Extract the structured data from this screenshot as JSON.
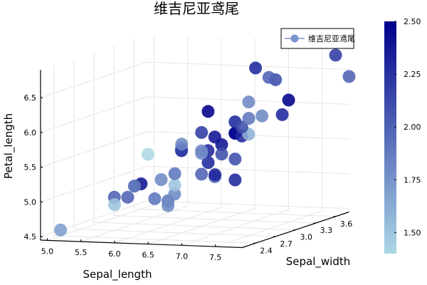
{
  "chart_data": {
    "type": "scatter",
    "title": "维吉尼亚鸢尾",
    "xlabel": "Sepal_length",
    "ylabel": "Sepal_width",
    "zlabel": "Petal_length",
    "xlim": [
      4.9,
      7.9
    ],
    "ylim": [
      2.2,
      3.8
    ],
    "zlim": [
      4.45,
      6.9
    ],
    "xticks": [
      "5.0",
      "5.5",
      "6.0",
      "6.5",
      "7.0",
      "7.5"
    ],
    "yticks": [
      "2.4",
      "2.7",
      "3.0",
      "3.3",
      "3.6"
    ],
    "zticks": [
      "4.5",
      "5.0",
      "5.5",
      "6.0",
      "6.5"
    ],
    "grid": true,
    "legend": {
      "position": "top-right",
      "entries": [
        "维吉尼亚鸢尾"
      ]
    },
    "colorbar": {
      "min": 1.4,
      "max": 2.5,
      "ticks": [
        "1.50",
        "1.75",
        "2.00",
        "2.25",
        "2.50"
      ],
      "low_color": "#add8e6",
      "high_color": "#00008b"
    },
    "series": [
      {
        "name": "维吉尼亚鸢尾",
        "x": [
          6.3,
          5.8,
          7.1,
          6.3,
          6.5,
          7.6,
          4.9,
          7.3,
          6.7,
          7.2,
          6.5,
          6.4,
          6.8,
          5.7,
          5.8,
          6.4,
          6.5,
          7.7,
          7.7,
          6.0,
          6.9,
          5.6,
          7.7,
          6.3,
          6.7,
          7.2,
          6.2,
          6.1,
          6.4,
          7.2,
          7.4,
          7.9,
          6.4,
          6.3,
          6.1,
          7.7,
          6.3,
          6.4,
          6.0,
          6.9,
          6.7,
          6.9,
          5.8,
          6.8,
          6.7,
          6.7,
          6.3,
          6.5,
          6.2,
          5.9
        ],
        "y": [
          3.3,
          2.7,
          3.0,
          2.9,
          3.0,
          3.0,
          2.5,
          2.9,
          2.5,
          3.6,
          3.2,
          2.7,
          3.0,
          2.5,
          2.8,
          3.2,
          3.0,
          3.8,
          2.6,
          2.2,
          3.2,
          2.8,
          2.8,
          2.7,
          3.3,
          3.2,
          2.8,
          3.0,
          2.8,
          3.0,
          2.8,
          3.8,
          2.8,
          2.8,
          2.6,
          3.0,
          3.4,
          3.1,
          3.0,
          3.1,
          3.1,
          3.1,
          2.7,
          3.2,
          3.3,
          3.0,
          2.5,
          3.0,
          3.4,
          3.0
        ],
        "z": [
          6.0,
          5.1,
          5.9,
          5.6,
          5.8,
          6.6,
          4.5,
          6.3,
          5.8,
          6.1,
          5.1,
          5.3,
          5.5,
          5.0,
          5.1,
          5.3,
          5.5,
          6.7,
          6.9,
          5.0,
          5.7,
          4.9,
          6.7,
          4.9,
          5.7,
          6.0,
          4.8,
          4.9,
          5.6,
          5.8,
          6.1,
          6.4,
          5.6,
          5.1,
          5.6,
          6.1,
          5.6,
          5.5,
          4.8,
          5.4,
          5.6,
          5.1,
          5.1,
          5.9,
          5.7,
          5.2,
          5.0,
          5.2,
          5.4,
          5.1
        ],
        "color_value": [
          2.5,
          1.9,
          2.1,
          1.8,
          2.2,
          2.1,
          1.7,
          1.8,
          1.8,
          2.5,
          2.0,
          1.9,
          2.1,
          2.0,
          2.4,
          2.3,
          1.8,
          2.2,
          2.3,
          1.5,
          2.3,
          2.0,
          2.0,
          1.8,
          2.1,
          1.8,
          1.8,
          1.8,
          2.1,
          1.6,
          1.9,
          2.0,
          2.2,
          1.5,
          1.4,
          2.3,
          2.4,
          1.8,
          1.8,
          2.1,
          2.4,
          2.3,
          1.9,
          2.3,
          2.5,
          2.3,
          1.9,
          2.0,
          2.3,
          1.8
        ]
      }
    ]
  }
}
